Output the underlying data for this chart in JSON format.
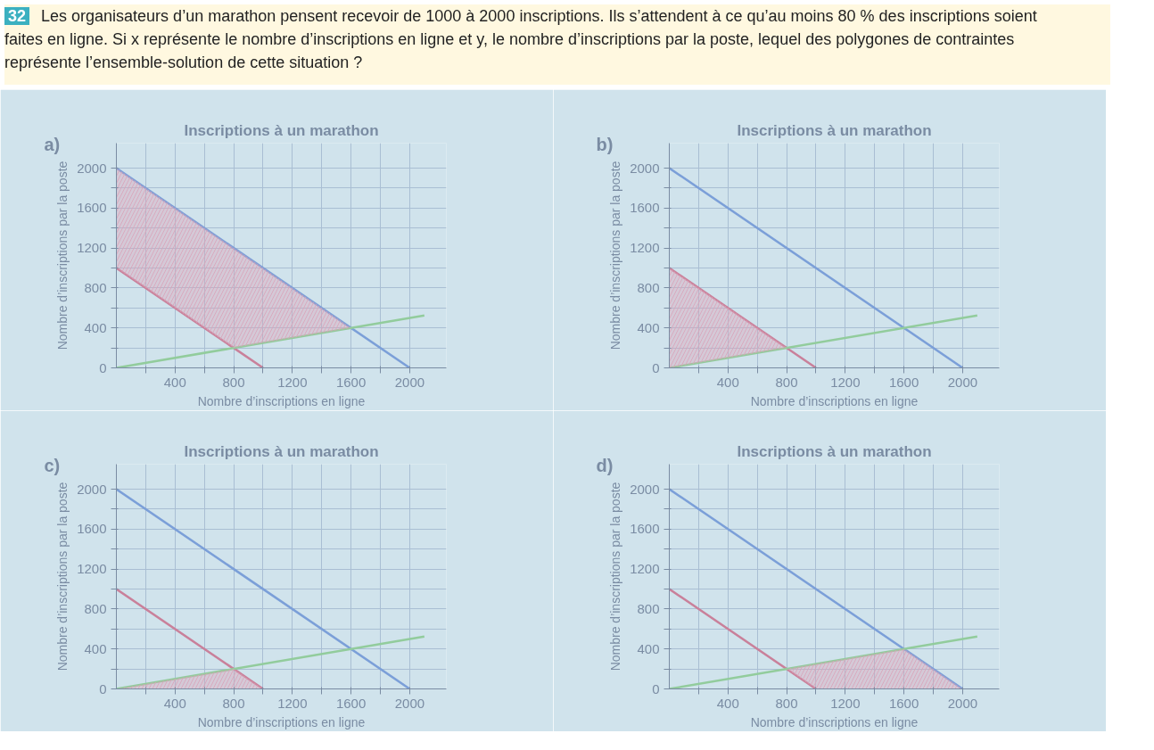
{
  "chart_data": [
    {
      "type": "line",
      "title": "Inscriptions à un marathon",
      "xlabel": "Nombre d’inscriptions en ligne",
      "ylabel": "Nombre d’inscriptions par la poste",
      "annotations": [
        "a)",
        "32",
        "Les organisateurs d’un marathon pensent recevoir de 1000 à 2000 inscriptions. Ils s’attendent à ce qu’au moins 80 % des inscriptions soient faites en ligne. Si x représente le nombre d’inscriptions en ligne et y, le nombre d’inscriptions par la poste, lequel des polygones de contraintes représente l’ensemble-solution de cette situation ?"
      ],
      "xlim": [
        0,
        2250
      ],
      "ylim": [
        0,
        2250
      ],
      "xticks": [
        {
          "value": 200,
          "label": null
        },
        400,
        {
          "value": 600,
          "label": null
        },
        800,
        {
          "value": 1000,
          "label": null
        },
        1200,
        {
          "value": 1400,
          "label": null
        },
        1600,
        {
          "value": 1800,
          "label": null
        },
        2000
      ],
      "yticks": [
        0,
        {
          "value": 200,
          "label": null
        },
        400,
        {
          "value": 600,
          "label": null
        },
        800,
        {
          "value": 1000,
          "label": null
        },
        1200,
        {
          "value": 1400,
          "label": null
        },
        1600,
        {
          "value": 1800,
          "label": null
        },
        2000
      ],
      "grid": true,
      "series": [
        {
          "type": "area",
          "color": "#d9a3b8",
          "x": [
            0,
            1600,
            800,
            0
          ],
          "values": [
            2000,
            400,
            200,
            1000
          ]
        },
        {
          "color": "#7b9fd8",
          "x": [
            0,
            2000
          ],
          "values": [
            2000,
            0
          ]
        },
        {
          "color": "#c9809a",
          "x": [
            0,
            1000
          ],
          "values": [
            1000,
            0
          ]
        },
        {
          "color": "#92cc9c",
          "x": [
            0,
            2100
          ],
          "values": [
            0,
            525
          ]
        }
      ]
    },
    {
      "type": "line",
      "title": "Inscriptions à un marathon",
      "xlabel": "Nombre d’inscriptions en ligne",
      "ylabel": "Nombre d’inscriptions par la poste",
      "annotations": [
        "b)"
      ],
      "xlim": [
        0,
        2250
      ],
      "ylim": [
        0,
        2250
      ],
      "xticks": [
        {
          "value": 200,
          "label": null
        },
        400,
        {
          "value": 600,
          "label": null
        },
        800,
        {
          "value": 1000,
          "label": null
        },
        1200,
        {
          "value": 1400,
          "label": null
        },
        1600,
        {
          "value": 1800,
          "label": null
        },
        2000
      ],
      "yticks": [
        0,
        {
          "value": 200,
          "label": null
        },
        400,
        {
          "value": 600,
          "label": null
        },
        800,
        {
          "value": 1000,
          "label": null
        },
        1200,
        {
          "value": 1400,
          "label": null
        },
        1600,
        {
          "value": 1800,
          "label": null
        },
        2000
      ],
      "grid": true,
      "series": [
        {
          "type": "area",
          "color": "#d9a3b8",
          "x": [
            0,
            800,
            0
          ],
          "values": [
            1000,
            200,
            0
          ]
        },
        {
          "color": "#7b9fd8",
          "x": [
            0,
            2000
          ],
          "values": [
            2000,
            0
          ]
        },
        {
          "color": "#c9809a",
          "x": [
            0,
            1000
          ],
          "values": [
            1000,
            0
          ]
        },
        {
          "color": "#92cc9c",
          "x": [
            0,
            2100
          ],
          "values": [
            0,
            525
          ]
        }
      ]
    },
    {
      "type": "line",
      "title": "Inscriptions à un marathon",
      "xlabel": "Nombre d’inscriptions en ligne",
      "ylabel": "Nombre d’inscriptions par la poste",
      "annotations": [
        "c)"
      ],
      "xlim": [
        0,
        2250
      ],
      "ylim": [
        0,
        2250
      ],
      "xticks": [
        {
          "value": 200,
          "label": null
        },
        400,
        {
          "value": 600,
          "label": null
        },
        800,
        {
          "value": 1000,
          "label": null
        },
        1200,
        {
          "value": 1400,
          "label": null
        },
        1600,
        {
          "value": 1800,
          "label": null
        },
        2000
      ],
      "yticks": [
        0,
        {
          "value": 200,
          "label": null
        },
        400,
        {
          "value": 600,
          "label": null
        },
        800,
        {
          "value": 1000,
          "label": null
        },
        1200,
        {
          "value": 1400,
          "label": null
        },
        1600,
        {
          "value": 1800,
          "label": null
        },
        2000
      ],
      "grid": true,
      "series": [
        {
          "type": "area",
          "color": "#d9a3b8",
          "x": [
            0,
            800,
            1000
          ],
          "values": [
            0,
            200,
            0
          ]
        },
        {
          "color": "#7b9fd8",
          "x": [
            0,
            2000
          ],
          "values": [
            2000,
            0
          ]
        },
        {
          "color": "#c9809a",
          "x": [
            0,
            1000
          ],
          "values": [
            1000,
            0
          ]
        },
        {
          "color": "#92cc9c",
          "x": [
            0,
            2100
          ],
          "values": [
            0,
            525
          ]
        }
      ]
    },
    {
      "type": "line",
      "title": "Inscriptions à un marathon",
      "xlabel": "Nombre d’inscriptions en ligne",
      "ylabel": "Nombre d’inscriptions par la poste",
      "annotations": [
        "d)"
      ],
      "xlim": [
        0,
        2250
      ],
      "ylim": [
        0,
        2250
      ],
      "xticks": [
        {
          "value": 200,
          "label": null
        },
        400,
        {
          "value": 600,
          "label": null
        },
        800,
        {
          "value": 1000,
          "label": null
        },
        1200,
        {
          "value": 1400,
          "label": null
        },
        1600,
        {
          "value": 1800,
          "label": null
        },
        2000
      ],
      "yticks": [
        0,
        {
          "value": 200,
          "label": null
        },
        400,
        {
          "value": 600,
          "label": null
        },
        800,
        {
          "value": 1000,
          "label": null
        },
        1200,
        {
          "value": 1400,
          "label": null
        },
        1600,
        {
          "value": 1800,
          "label": null
        },
        2000
      ],
      "grid": true,
      "series": [
        {
          "type": "area",
          "color": "#d9a3b8",
          "x": [
            800,
            1600,
            2000,
            1000
          ],
          "values": [
            200,
            400,
            0,
            0
          ]
        },
        {
          "color": "#7b9fd8",
          "x": [
            0,
            2000
          ],
          "values": [
            2000,
            0
          ]
        },
        {
          "color": "#c9809a",
          "x": [
            0,
            1000
          ],
          "values": [
            1000,
            0
          ]
        },
        {
          "color": "#92cc9c",
          "x": [
            0,
            2100
          ],
          "values": [
            0,
            525
          ]
        }
      ]
    }
  ]
}
